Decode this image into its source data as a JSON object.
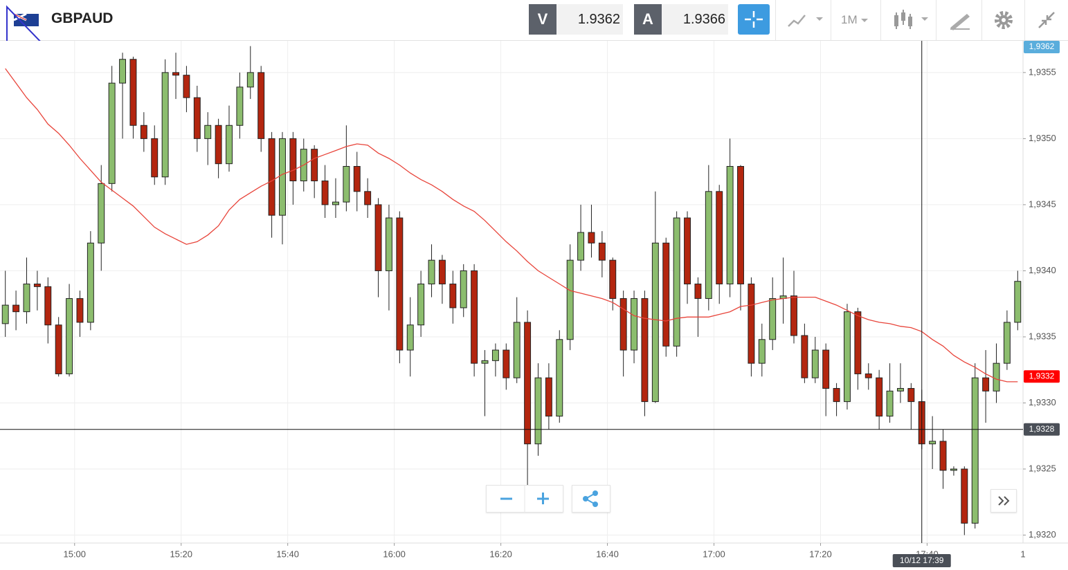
{
  "header": {
    "symbol": "GBPAUD",
    "bid_label": "V",
    "bid": 1.9362,
    "ask_label": "A",
    "ask": 1.9366,
    "timeframe": "1M"
  },
  "chart_data": {
    "type": "candlestick",
    "categories": [
      "14:47",
      "14:49",
      "14:51",
      "14:53",
      "14:55",
      "14:57",
      "14:59",
      "15:01",
      "15:03",
      "15:05",
      "15:07",
      "15:09",
      "15:11",
      "15:13",
      "15:15",
      "15:17",
      "15:19",
      "15:21",
      "15:23",
      "15:25",
      "15:27",
      "15:29",
      "15:31",
      "15:33",
      "15:35",
      "15:37",
      "15:39",
      "15:41",
      "15:43",
      "15:45",
      "15:47",
      "15:49",
      "15:51",
      "15:53",
      "15:55",
      "15:57",
      "15:59",
      "16:01",
      "16:03",
      "16:05",
      "16:07",
      "16:09",
      "16:11",
      "16:13",
      "16:15",
      "16:17",
      "16:19",
      "16:21",
      "16:23",
      "16:25",
      "16:27",
      "16:29",
      "16:31",
      "16:33",
      "16:35",
      "16:37",
      "16:39",
      "16:41",
      "16:43",
      "16:45",
      "16:47",
      "16:49",
      "16:51",
      "16:53",
      "16:55",
      "16:57",
      "16:59",
      "17:01",
      "17:03",
      "17:05",
      "17:07",
      "17:09",
      "17:11",
      "17:13",
      "17:15",
      "17:17",
      "17:19",
      "17:21",
      "17:23",
      "17:25",
      "17:27",
      "17:29",
      "17:31",
      "17:33",
      "17:35",
      "17:37",
      "17:39",
      "17:41",
      "17:43",
      "17:45",
      "17:47",
      "17:49",
      "17:51",
      "17:53",
      "17:55",
      "17:57"
    ],
    "open": [
      1.9336,
      1.93374,
      1.93369,
      1.9339,
      1.93388,
      1.93359,
      1.93322,
      1.93379,
      1.93361,
      1.93421,
      1.93466,
      1.93542,
      1.9356,
      1.9351,
      1.935,
      1.93471,
      1.9355,
      1.93548,
      1.93531,
      1.935,
      1.9351,
      1.93481,
      1.9351,
      1.93539,
      1.9355,
      1.935,
      1.93442,
      1.935,
      1.93468,
      1.93492,
      1.93468,
      1.9345,
      1.93452,
      1.93479,
      1.9346,
      1.9345,
      1.934,
      1.9344,
      1.9334,
      1.93359,
      1.9339,
      1.93408,
      1.9339,
      1.93372,
      1.934,
      1.9333,
      1.93332,
      1.9334,
      1.93319,
      1.93361,
      1.93269,
      1.93319,
      1.9329,
      1.93348,
      1.93408,
      1.93429,
      1.93421,
      1.93408,
      1.93379,
      1.9334,
      1.93379,
      1.93301,
      1.93421,
      1.93343,
      1.9344,
      1.9339,
      1.93379,
      1.9346,
      1.9339,
      1.93479,
      1.9339,
      1.9333,
      1.93348,
      1.93379,
      1.93381,
      1.93351,
      1.93319,
      1.9334,
      1.93311,
      1.93301,
      1.93369,
      1.93322,
      1.93319,
      1.9329,
      1.93309,
      1.93311,
      1.93301,
      1.93269,
      1.93271,
      1.93249,
      1.9325,
      1.93209,
      1.93319,
      1.93309,
      1.9333,
      1.93361
    ],
    "high": [
      1.934,
      1.93385,
      1.9341,
      1.934,
      1.93395,
      1.93365,
      1.9339,
      1.93385,
      1.9343,
      1.9348,
      1.93555,
      1.93565,
      1.93562,
      1.9352,
      1.9351,
      1.9356,
      1.93565,
      1.93555,
      1.9354,
      1.9352,
      1.93515,
      1.93525,
      1.9355,
      1.9357,
      1.93555,
      1.93505,
      1.93505,
      1.93505,
      1.935,
      1.93495,
      1.9348,
      1.9347,
      1.9351,
      1.9349,
      1.9347,
      1.93455,
      1.9345,
      1.93445,
      1.9338,
      1.934,
      1.9342,
      1.93412,
      1.934,
      1.93405,
      1.93405,
      1.9334,
      1.93345,
      1.93345,
      1.9338,
      1.9337,
      1.9333,
      1.9333,
      1.93355,
      1.9342,
      1.9345,
      1.9345,
      1.9343,
      1.9341,
      1.93385,
      1.93385,
      1.93385,
      1.9346,
      1.93425,
      1.93445,
      1.93445,
      1.93395,
      1.9348,
      1.93465,
      1.935,
      1.9348,
      1.93395,
      1.9336,
      1.93395,
      1.9341,
      1.934,
      1.9336,
      1.9335,
      1.93345,
      1.93315,
      1.93375,
      1.93372,
      1.9333,
      1.93325,
      1.9333,
      1.9333,
      1.93315,
      1.9331,
      1.9329,
      1.9328,
      1.93252,
      1.93252,
      1.9333,
      1.9334,
      1.93345,
      1.9337,
      1.934
    ],
    "low": [
      1.9335,
      1.93355,
      1.9336,
      1.9337,
      1.93345,
      1.9332,
      1.9332,
      1.9335,
      1.93355,
      1.934,
      1.9346,
      1.935,
      1.935,
      1.9349,
      1.93465,
      1.93465,
      1.9353,
      1.9352,
      1.9349,
      1.9348,
      1.9347,
      1.93475,
      1.935,
      1.9353,
      1.9349,
      1.93425,
      1.9342,
      1.9345,
      1.9346,
      1.93455,
      1.9344,
      1.9344,
      1.93445,
      1.93445,
      1.9344,
      1.9338,
      1.9337,
      1.9333,
      1.9332,
      1.9335,
      1.9338,
      1.93375,
      1.9336,
      1.93365,
      1.9332,
      1.9329,
      1.9332,
      1.9331,
      1.93315,
      1.9323,
      1.9326,
      1.9328,
      1.93285,
      1.9334,
      1.934,
      1.9341,
      1.93395,
      1.9337,
      1.9332,
      1.9333,
      1.9329,
      1.933,
      1.93335,
      1.93335,
      1.93375,
      1.9335,
      1.9337,
      1.93375,
      1.9338,
      1.9337,
      1.9332,
      1.9332,
      1.9334,
      1.9336,
      1.93345,
      1.93315,
      1.93315,
      1.9329,
      1.9329,
      1.93295,
      1.9331,
      1.9331,
      1.9328,
      1.93285,
      1.933,
      1.9328,
      1.93265,
      1.9325,
      1.93235,
      1.93245,
      1.932,
      1.93205,
      1.93285,
      1.933,
      1.93325,
      1.93355
    ],
    "close": [
      1.93374,
      1.93369,
      1.9339,
      1.93388,
      1.93359,
      1.93322,
      1.93379,
      1.93361,
      1.93421,
      1.93466,
      1.93542,
      1.9356,
      1.9351,
      1.935,
      1.93471,
      1.9355,
      1.93548,
      1.93531,
      1.935,
      1.9351,
      1.93481,
      1.9351,
      1.93539,
      1.9355,
      1.935,
      1.93442,
      1.935,
      1.93468,
      1.93492,
      1.93468,
      1.9345,
      1.93452,
      1.93479,
      1.9346,
      1.9345,
      1.934,
      1.9344,
      1.9334,
      1.93359,
      1.9339,
      1.93408,
      1.9339,
      1.93372,
      1.934,
      1.9333,
      1.93332,
      1.9334,
      1.93319,
      1.93361,
      1.93269,
      1.93319,
      1.9329,
      1.93348,
      1.93408,
      1.93429,
      1.93421,
      1.93408,
      1.93379,
      1.9334,
      1.93379,
      1.93301,
      1.93421,
      1.93343,
      1.9344,
      1.9339,
      1.93379,
      1.9346,
      1.9339,
      1.93479,
      1.9339,
      1.9333,
      1.93348,
      1.93379,
      1.93381,
      1.93351,
      1.93319,
      1.9334,
      1.93311,
      1.93301,
      1.93369,
      1.93322,
      1.93319,
      1.9329,
      1.93309,
      1.93311,
      1.93301,
      1.93269,
      1.93271,
      1.93249,
      1.9325,
      1.93209,
      1.93319,
      1.93309,
      1.9333,
      1.93361,
      1.93392
    ],
    "up_color": "#8cbd6e",
    "down_color": "#b3260f",
    "outline_color": "#222222",
    "ma": {
      "color": "#e8443a",
      "values": [
        1.93553,
        1.93542,
        1.93531,
        1.93522,
        1.93511,
        1.93504,
        1.93495,
        1.93485,
        1.93476,
        1.93467,
        1.93461,
        1.93455,
        1.93449,
        1.93441,
        1.93433,
        1.93428,
        1.93424,
        1.9342,
        1.93422,
        1.93427,
        1.93434,
        1.93446,
        1.93454,
        1.93459,
        1.93464,
        1.93468,
        1.93473,
        1.93476,
        1.9348,
        1.93485,
        1.93488,
        1.93491,
        1.93494,
        1.93496,
        1.93495,
        1.93489,
        1.93485,
        1.9348,
        1.93474,
        1.93469,
        1.93465,
        1.9346,
        1.93454,
        1.93449,
        1.93445,
        1.93438,
        1.9343,
        1.93422,
        1.93415,
        1.93407,
        1.934,
        1.93395,
        1.9339,
        1.93385,
        1.93383,
        1.93381,
        1.93379,
        1.93376,
        1.93371,
        1.93366,
        1.93364,
        1.93363,
        1.93362,
        1.93364,
        1.93365,
        1.93365,
        1.93365,
        1.93367,
        1.93369,
        1.93373,
        1.93374,
        1.93376,
        1.93378,
        1.93379,
        1.9338,
        1.9338,
        1.9338,
        1.93377,
        1.93374,
        1.9337,
        1.93366,
        1.93363,
        1.93361,
        1.9336,
        1.93358,
        1.93357,
        1.93354,
        1.93348,
        1.93343,
        1.93336,
        1.93331,
        1.93327,
        1.93322,
        1.93318,
        1.93316,
        1.93316
      ]
    },
    "xlim": [
      "14:46",
      "17:58"
    ],
    "xticks": [
      "15:00",
      "15:20",
      "15:40",
      "16:00",
      "16:20",
      "16:40",
      "17:00",
      "17:20",
      "17:40"
    ],
    "x_edge_label": "1",
    "ylim": [
      1.93194,
      1.93574
    ],
    "yticks": [
      {
        "value": 1.932,
        "label": "1,9320"
      },
      {
        "value": 1.9325,
        "label": "1,9325"
      },
      {
        "value": 1.933,
        "label": "1,9330"
      },
      {
        "value": 1.9335,
        "label": "1,9335"
      },
      {
        "value": 1.934,
        "label": "1,9340"
      },
      {
        "value": 1.9345,
        "label": "1,9345"
      },
      {
        "value": 1.935,
        "label": "1,9350"
      },
      {
        "value": 1.9355,
        "label": "1,9355"
      }
    ],
    "grid": true,
    "price_tags": [
      {
        "value": 1.9362,
        "label": "1,9362",
        "color": "#5aaddc"
      },
      {
        "value": 1.9332,
        "label": "1,9332",
        "color": "#ff0000"
      }
    ],
    "crosshair": {
      "time": "17:39",
      "label": "10/12 17:39",
      "price": {
        "value": 1.9328,
        "label": "1,9328"
      },
      "color": "#4a4f57"
    }
  }
}
